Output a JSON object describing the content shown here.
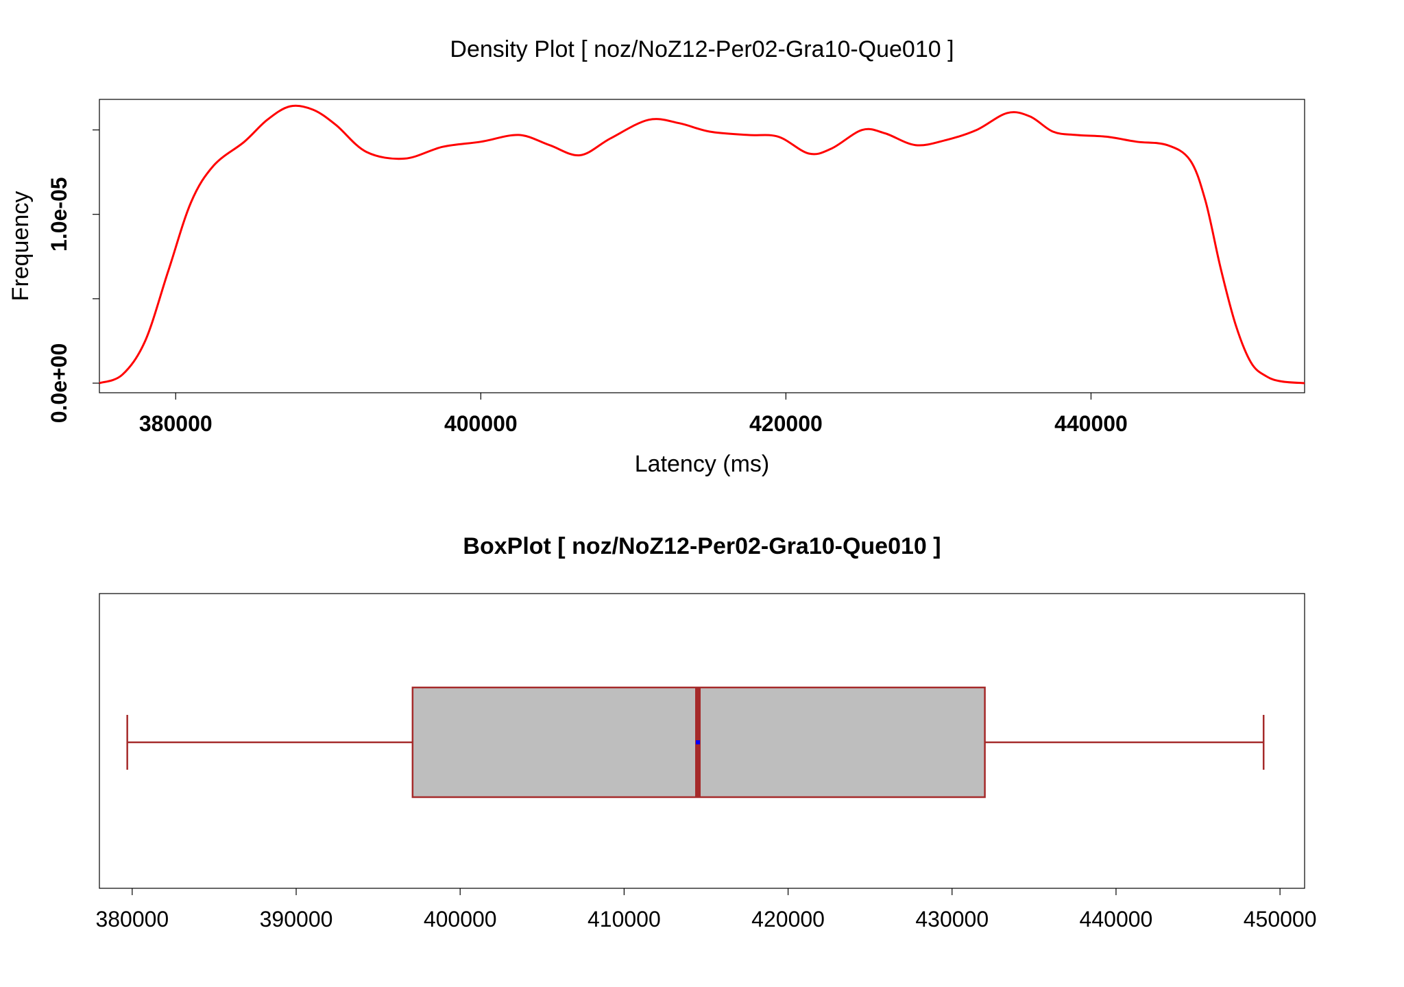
{
  "chart_data": [
    {
      "type": "line",
      "title": "Density Plot [ noz/NoZ12-Per02-Gra10-Que010 ]",
      "xlabel": "Latency (ms)",
      "ylabel": "Frequency",
      "xlim": [
        375000,
        454000
      ],
      "ylim": [
        0,
        1.62e-05
      ],
      "x_ticks": [
        380000,
        400000,
        420000,
        440000
      ],
      "x_tick_labels": [
        "380000",
        "400000",
        "420000",
        "440000"
      ],
      "y_ticks": [
        0,
        5e-06,
        1e-05,
        1.5e-05
      ],
      "y_tick_labels": [
        "0.0e+00",
        "",
        "1.0e-05",
        ""
      ],
      "grid": false,
      "color": "#ff0000",
      "series": [
        {
          "x": [
            375000,
            376500,
            378000,
            379500,
            381000,
            382500,
            384500,
            386000,
            387500,
            389000,
            390500,
            392500,
            395000,
            397500,
            400000,
            402500,
            404500,
            406500,
            408500,
            411000,
            413000,
            415000,
            417500,
            419500,
            421500,
            423000,
            425000,
            426500,
            428500,
            430500,
            432500,
            434500,
            436000,
            437500,
            439000,
            441000,
            443000,
            445000,
            446500,
            447500,
            448500,
            449500,
            450500,
            451500,
            452500,
            454000
          ],
          "y": [
            0,
            5e-07,
            2.5e-06,
            6.6e-06,
            1.07e-05,
            1.29e-05,
            1.43e-05,
            1.56e-05,
            1.64e-05,
            1.62e-05,
            1.53e-05,
            1.37e-05,
            1.33e-05,
            1.4e-05,
            1.43e-05,
            1.47e-05,
            1.41e-05,
            1.35e-05,
            1.45e-05,
            1.56e-05,
            1.54e-05,
            1.49e-05,
            1.47e-05,
            1.46e-05,
            1.36e-05,
            1.39e-05,
            1.5e-05,
            1.48e-05,
            1.41e-05,
            1.44e-05,
            1.5e-05,
            1.6e-05,
            1.58e-05,
            1.49e-05,
            1.47e-05,
            1.46e-05,
            1.43e-05,
            1.41e-05,
            1.32e-05,
            1.08e-05,
            6.8e-06,
            3.4e-06,
            1.2e-06,
            4e-07,
            1e-07,
            0
          ]
        }
      ]
    },
    {
      "type": "box",
      "title": "BoxPlot [ noz/NoZ12-Per02-Gra10-Que010 ]",
      "orientation": "horizontal",
      "xlim": [
        378000,
        451500
      ],
      "x_ticks": [
        380000,
        390000,
        400000,
        410000,
        420000,
        430000,
        440000,
        450000
      ],
      "x_tick_labels": [
        "380000",
        "390000",
        "400000",
        "410000",
        "420000",
        "430000",
        "440000",
        "450000"
      ],
      "whisker_low": 379700,
      "q1": 397100,
      "median": 414500,
      "mean": 414500,
      "q3": 432000,
      "whisker_high": 449000,
      "box_fill": "#bebebe",
      "line_color": "#a52a2a",
      "mean_color": "#0000ff"
    }
  ]
}
